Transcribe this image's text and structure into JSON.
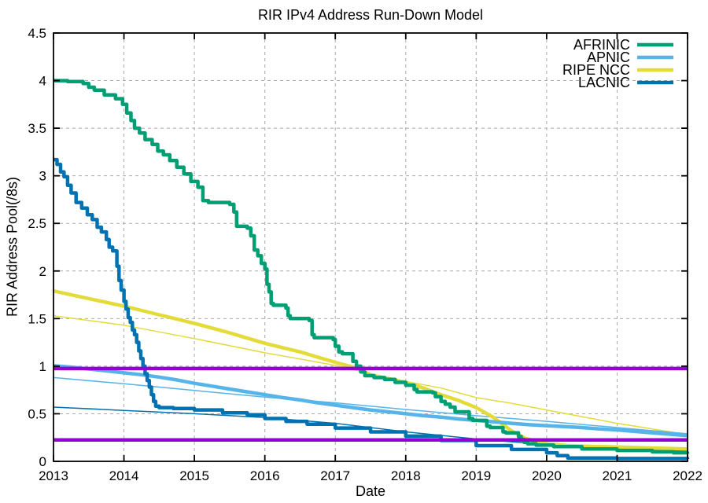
{
  "chart_data": {
    "type": "line",
    "title": "RIR IPv4 Address Run-Down Model",
    "xlabel": "Date",
    "ylabel": "RIR Address Pool(/8s)",
    "xlim": [
      2013,
      2022
    ],
    "ylim": [
      0,
      4.5
    ],
    "grid": true,
    "legend_position": "top-right-inside",
    "x_ticks": [
      {
        "v": 2013,
        "label": "2013"
      },
      {
        "v": 2014,
        "label": "2014"
      },
      {
        "v": 2015,
        "label": "2015"
      },
      {
        "v": 2016,
        "label": "2016"
      },
      {
        "v": 2017,
        "label": "2017"
      },
      {
        "v": 2018,
        "label": "2018"
      },
      {
        "v": 2019,
        "label": "2019"
      },
      {
        "v": 2020,
        "label": "2020"
      },
      {
        "v": 2021,
        "label": "2021"
      },
      {
        "v": 2022,
        "label": "2022"
      }
    ],
    "y_ticks": [
      {
        "v": 0,
        "label": "0"
      },
      {
        "v": 0.5,
        "label": "0.5"
      },
      {
        "v": 1,
        "label": "1"
      },
      {
        "v": 1.5,
        "label": "1.5"
      },
      {
        "v": 2,
        "label": "2"
      },
      {
        "v": 2.5,
        "label": "2.5"
      },
      {
        "v": 3,
        "label": "3"
      },
      {
        "v": 3.5,
        "label": "3.5"
      },
      {
        "v": 4,
        "label": "4"
      },
      {
        "v": 4.5,
        "label": "4.5"
      }
    ],
    "colors": {
      "afrinic": "#009E73",
      "apnic": "#56B4E9",
      "ripe_ncc": "#E3DB3A",
      "lacnic": "#0072B2",
      "threshold": "#9400D3",
      "grid": "#ABABAB",
      "frame": "#000000"
    },
    "thresholds": [
      {
        "name": "upper",
        "y": 0.975
      },
      {
        "name": "lower",
        "y": 0.225
      }
    ],
    "series": [
      {
        "name": "RIPE NCC model",
        "color": "#E3DB3A",
        "width": 1.5,
        "interp": "linear",
        "in_legend": false,
        "points": [
          [
            2013,
            1.53
          ],
          [
            2014,
            1.43
          ],
          [
            2015,
            1.29
          ],
          [
            2016,
            1.14
          ],
          [
            2017,
            1.01
          ],
          [
            2017.5,
            0.92
          ],
          [
            2018,
            0.84
          ],
          [
            2018.5,
            0.77
          ],
          [
            2019,
            0.67
          ],
          [
            2019.5,
            0.61
          ],
          [
            2020,
            0.54
          ],
          [
            2020.5,
            0.47
          ],
          [
            2021,
            0.4
          ],
          [
            2021.5,
            0.34
          ],
          [
            2022,
            0.28
          ]
        ]
      },
      {
        "name": "APNIC model",
        "color": "#56B4E9",
        "width": 1.5,
        "interp": "linear",
        "in_legend": false,
        "points": [
          [
            2013,
            0.88
          ],
          [
            2014,
            0.815
          ],
          [
            2015,
            0.745
          ],
          [
            2016,
            0.675
          ],
          [
            2017,
            0.615
          ],
          [
            2018,
            0.545
          ],
          [
            2019,
            0.48
          ],
          [
            2020,
            0.42
          ],
          [
            2021,
            0.355
          ],
          [
            2022,
            0.29
          ]
        ]
      },
      {
        "name": "LACNIC model",
        "color": "#0072B2",
        "width": 1.5,
        "interp": "linear",
        "in_legend": false,
        "points": [
          [
            2013,
            0.57
          ],
          [
            2014,
            0.535
          ],
          [
            2015,
            0.5
          ],
          [
            2016,
            0.46
          ],
          [
            2017,
            0.4
          ],
          [
            2018,
            0.31
          ],
          [
            2019,
            0.235
          ],
          [
            2020,
            0.175
          ],
          [
            2021,
            0.135
          ],
          [
            2022,
            0.11
          ]
        ]
      },
      {
        "name": "RIPE NCC",
        "color": "#E3DB3A",
        "width": 4.5,
        "interp": "linear",
        "in_legend": true,
        "points": [
          [
            2013,
            1.79
          ],
          [
            2013.25,
            1.75
          ],
          [
            2013.5,
            1.71
          ],
          [
            2013.75,
            1.67
          ],
          [
            2014,
            1.63
          ],
          [
            2014.25,
            1.585
          ],
          [
            2014.5,
            1.54
          ],
          [
            2014.75,
            1.495
          ],
          [
            2015,
            1.45
          ],
          [
            2015.25,
            1.4
          ],
          [
            2015.5,
            1.35
          ],
          [
            2015.75,
            1.295
          ],
          [
            2016,
            1.24
          ],
          [
            2016.25,
            1.195
          ],
          [
            2016.5,
            1.15
          ],
          [
            2016.75,
            1.095
          ],
          [
            2017,
            1.04
          ],
          [
            2017.3,
            0.98
          ],
          [
            2017.5,
            0.91
          ],
          [
            2017.75,
            0.87
          ],
          [
            2018,
            0.83
          ],
          [
            2018.25,
            0.77
          ],
          [
            2018.5,
            0.7
          ],
          [
            2018.75,
            0.64
          ],
          [
            2019,
            0.565
          ],
          [
            2019.25,
            0.46
          ],
          [
            2019.5,
            0.32
          ],
          [
            2019.7,
            0.24
          ],
          [
            2019.85,
            0.215
          ],
          [
            2020,
            0.185
          ],
          [
            2020.3,
            0.165
          ],
          [
            2020.7,
            0.155
          ],
          [
            2021,
            0.15
          ],
          [
            2021.5,
            0.14
          ],
          [
            2022,
            0.13
          ]
        ]
      },
      {
        "name": "APNIC",
        "color": "#56B4E9",
        "width": 4.5,
        "interp": "linear",
        "in_legend": true,
        "points": [
          [
            2013,
            1.005
          ],
          [
            2013.25,
            0.99
          ],
          [
            2013.5,
            0.97
          ],
          [
            2013.75,
            0.95
          ],
          [
            2014,
            0.93
          ],
          [
            2014.25,
            0.91
          ],
          [
            2014.5,
            0.885
          ],
          [
            2014.75,
            0.855
          ],
          [
            2015,
            0.82
          ],
          [
            2015.25,
            0.79
          ],
          [
            2015.5,
            0.76
          ],
          [
            2015.75,
            0.73
          ],
          [
            2016,
            0.7
          ],
          [
            2016.25,
            0.67
          ],
          [
            2016.5,
            0.645
          ],
          [
            2016.75,
            0.615
          ],
          [
            2017,
            0.59
          ],
          [
            2017.25,
            0.565
          ],
          [
            2017.5,
            0.54
          ],
          [
            2017.75,
            0.52
          ],
          [
            2018,
            0.5
          ],
          [
            2018.25,
            0.48
          ],
          [
            2018.5,
            0.465
          ],
          [
            2018.75,
            0.445
          ],
          [
            2019,
            0.43
          ],
          [
            2019.25,
            0.415
          ],
          [
            2019.5,
            0.4
          ],
          [
            2019.75,
            0.385
          ],
          [
            2020,
            0.375
          ],
          [
            2020.25,
            0.365
          ],
          [
            2020.5,
            0.355
          ],
          [
            2020.75,
            0.34
          ],
          [
            2021,
            0.33
          ],
          [
            2021.25,
            0.315
          ],
          [
            2021.5,
            0.3
          ],
          [
            2021.75,
            0.285
          ],
          [
            2022,
            0.27
          ]
        ]
      },
      {
        "name": "AFRINIC",
        "color": "#009E73",
        "width": 4.5,
        "interp": "step",
        "in_legend": true,
        "points": [
          [
            2013.0,
            4.0
          ],
          [
            2013.2,
            3.99
          ],
          [
            2013.42,
            3.97
          ],
          [
            2013.5,
            3.93
          ],
          [
            2013.58,
            3.9
          ],
          [
            2013.72,
            3.85
          ],
          [
            2013.88,
            3.81
          ],
          [
            2013.98,
            3.75
          ],
          [
            2014.04,
            3.66
          ],
          [
            2014.1,
            3.58
          ],
          [
            2014.15,
            3.5
          ],
          [
            2014.22,
            3.45
          ],
          [
            2014.3,
            3.38
          ],
          [
            2014.4,
            3.33
          ],
          [
            2014.48,
            3.26
          ],
          [
            2014.56,
            3.22
          ],
          [
            2014.65,
            3.16
          ],
          [
            2014.75,
            3.09
          ],
          [
            2014.85,
            3.02
          ],
          [
            2014.95,
            2.94
          ],
          [
            2015.05,
            2.88
          ],
          [
            2015.12,
            2.74
          ],
          [
            2015.2,
            2.72
          ],
          [
            2015.5,
            2.7
          ],
          [
            2015.56,
            2.62
          ],
          [
            2015.6,
            2.47
          ],
          [
            2015.75,
            2.45
          ],
          [
            2015.8,
            2.37
          ],
          [
            2015.85,
            2.22
          ],
          [
            2015.9,
            2.16
          ],
          [
            2015.95,
            2.08
          ],
          [
            2016.0,
            2.02
          ],
          [
            2016.03,
            1.86
          ],
          [
            2016.06,
            1.78
          ],
          [
            2016.09,
            1.66
          ],
          [
            2016.12,
            1.64
          ],
          [
            2016.3,
            1.61
          ],
          [
            2016.33,
            1.53
          ],
          [
            2016.36,
            1.5
          ],
          [
            2016.63,
            1.48
          ],
          [
            2016.67,
            1.33
          ],
          [
            2016.7,
            1.3
          ],
          [
            2016.97,
            1.28
          ],
          [
            2017.0,
            1.21
          ],
          [
            2017.05,
            1.15
          ],
          [
            2017.1,
            1.13
          ],
          [
            2017.25,
            1.05
          ],
          [
            2017.3,
            1.0
          ],
          [
            2017.36,
            0.94
          ],
          [
            2017.42,
            0.9
          ],
          [
            2017.55,
            0.88
          ],
          [
            2017.7,
            0.86
          ],
          [
            2017.85,
            0.83
          ],
          [
            2018.0,
            0.8
          ],
          [
            2018.12,
            0.755
          ],
          [
            2018.16,
            0.73
          ],
          [
            2018.38,
            0.72
          ],
          [
            2018.42,
            0.68
          ],
          [
            2018.5,
            0.63
          ],
          [
            2018.56,
            0.6
          ],
          [
            2018.63,
            0.57
          ],
          [
            2018.7,
            0.52
          ],
          [
            2018.9,
            0.45
          ],
          [
            2018.95,
            0.43
          ],
          [
            2019.15,
            0.37
          ],
          [
            2019.2,
            0.355
          ],
          [
            2019.38,
            0.31
          ],
          [
            2019.42,
            0.3
          ],
          [
            2019.6,
            0.26
          ],
          [
            2019.64,
            0.23
          ],
          [
            2019.68,
            0.2
          ],
          [
            2019.73,
            0.185
          ],
          [
            2019.85,
            0.17
          ],
          [
            2020.1,
            0.155
          ],
          [
            2020.5,
            0.13
          ],
          [
            2021.0,
            0.115
          ],
          [
            2021.5,
            0.1
          ],
          [
            2021.8,
            0.09
          ],
          [
            2022,
            0.08
          ]
        ]
      },
      {
        "name": "LACNIC",
        "color": "#0072B2",
        "width": 4.5,
        "interp": "step",
        "in_legend": true,
        "points": [
          [
            2013.0,
            3.17
          ],
          [
            2013.05,
            3.12
          ],
          [
            2013.1,
            3.04
          ],
          [
            2013.15,
            2.99
          ],
          [
            2013.2,
            2.9
          ],
          [
            2013.25,
            2.82
          ],
          [
            2013.32,
            2.72
          ],
          [
            2013.4,
            2.66
          ],
          [
            2013.48,
            2.59
          ],
          [
            2013.55,
            2.54
          ],
          [
            2013.62,
            2.46
          ],
          [
            2013.68,
            2.41
          ],
          [
            2013.75,
            2.33
          ],
          [
            2013.79,
            2.25
          ],
          [
            2013.84,
            2.21
          ],
          [
            2013.9,
            2.05
          ],
          [
            2013.93,
            1.9
          ],
          [
            2013.96,
            1.8
          ],
          [
            2014.0,
            1.68
          ],
          [
            2014.03,
            1.6
          ],
          [
            2014.06,
            1.51
          ],
          [
            2014.09,
            1.46
          ],
          [
            2014.12,
            1.38
          ],
          [
            2014.15,
            1.33
          ],
          [
            2014.18,
            1.25
          ],
          [
            2014.21,
            1.16
          ],
          [
            2014.24,
            1.08
          ],
          [
            2014.27,
            1.0
          ],
          [
            2014.3,
            0.92
          ],
          [
            2014.33,
            0.85
          ],
          [
            2014.36,
            0.78
          ],
          [
            2014.39,
            0.7
          ],
          [
            2014.42,
            0.63
          ],
          [
            2014.45,
            0.58
          ],
          [
            2014.5,
            0.565
          ],
          [
            2014.7,
            0.555
          ],
          [
            2015.0,
            0.54
          ],
          [
            2015.4,
            0.51
          ],
          [
            2015.75,
            0.49
          ],
          [
            2016.0,
            0.45
          ],
          [
            2016.3,
            0.42
          ],
          [
            2016.6,
            0.39
          ],
          [
            2017.0,
            0.35
          ],
          [
            2017.5,
            0.31
          ],
          [
            2018.0,
            0.265
          ],
          [
            2018.5,
            0.22
          ],
          [
            2019.0,
            0.165
          ],
          [
            2019.5,
            0.125
          ],
          [
            2020.0,
            0.09
          ],
          [
            2020.15,
            0.06
          ],
          [
            2020.3,
            0.035
          ],
          [
            2021.0,
            0.03
          ],
          [
            2022,
            0.025
          ]
        ]
      }
    ],
    "legend": [
      {
        "label": "AFRINIC",
        "color": "#009E73"
      },
      {
        "label": "APNIC",
        "color": "#56B4E9"
      },
      {
        "label": "RIPE NCC",
        "color": "#E3DB3A"
      },
      {
        "label": "LACNIC",
        "color": "#0072B2"
      }
    ]
  }
}
